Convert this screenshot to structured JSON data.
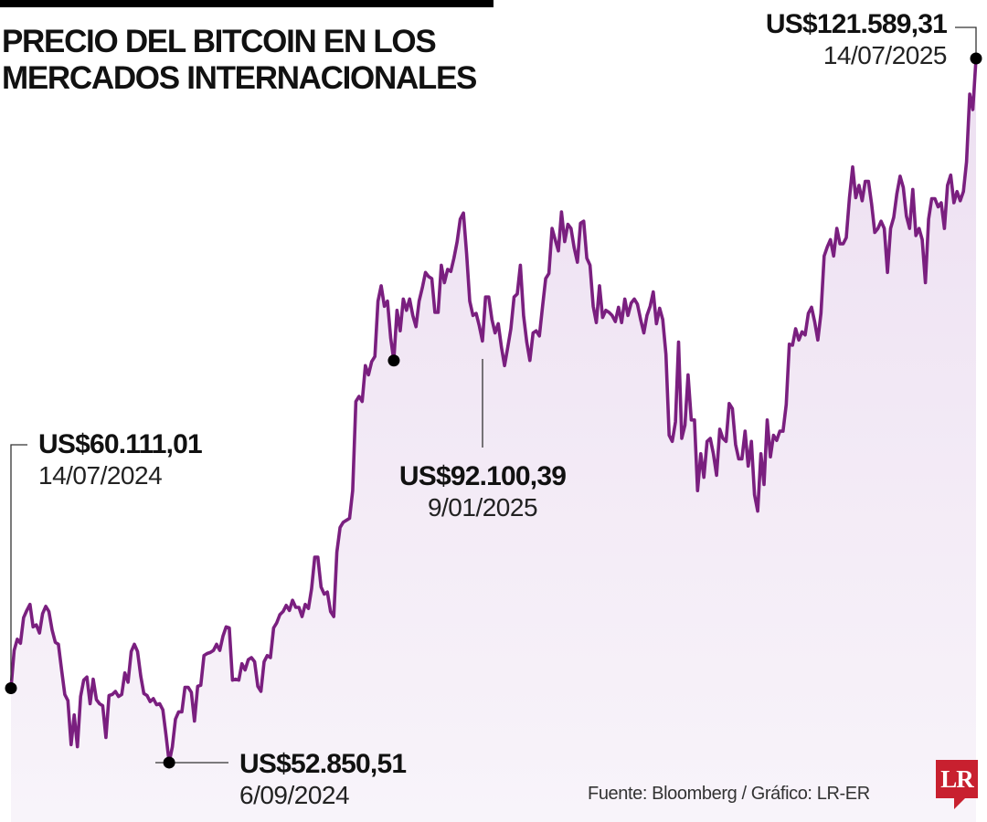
{
  "title": "PRECIO DEL BITCOIN EN LOS\nMERCADOS INTERNACIONALES",
  "source": "Fuente: Bloomberg / Gráfico: LR-ER",
  "logo_text": "LR",
  "colors": {
    "line": "#7a1f7f",
    "area": "#efe3f2",
    "bitcoin_icon": "#dcc3e0",
    "logo": "#c8202f"
  },
  "icons": {
    "background": "bitcoin-icon",
    "logo": "lr-logo"
  },
  "chart_data": {
    "type": "area",
    "title": "PRECIO DEL BITCOIN EN LOS MERCADOS INTERNACIONALES",
    "xlabel": "",
    "ylabel": "",
    "x_range": [
      "14/07/2024",
      "14/07/2025"
    ],
    "ylim": [
      47000,
      127300
    ],
    "grid": false,
    "legend": "none",
    "currency": "US$",
    "values": [
      60111,
      63800,
      64900,
      64500,
      67000,
      67700,
      68300,
      66100,
      66300,
      65500,
      67400,
      68100,
      67600,
      65800,
      64600,
      64400,
      61900,
      59500,
      58900,
      54600,
      57500,
      54400,
      59300,
      60900,
      61200,
      58600,
      61000,
      59000,
      58600,
      58400,
      55300,
      59400,
      59500,
      59800,
      59300,
      59500,
      61600,
      60700,
      63700,
      64400,
      63700,
      61300,
      59600,
      59400,
      58800,
      59100,
      58500,
      58600,
      58000,
      55500,
      52851,
      54400,
      57100,
      57800,
      57800,
      60200,
      60200,
      59700,
      56900,
      60300,
      60400,
      63300,
      63500,
      63600,
      63800,
      64400,
      63800,
      65200,
      66100,
      66000,
      60900,
      61000,
      60900,
      62500,
      61900,
      62900,
      63100,
      62700,
      60300,
      59800,
      62700,
      63300,
      63100,
      66000,
      66500,
      67300,
      67600,
      68200,
      67700,
      68700,
      68000,
      68000,
      67100,
      68300,
      67900,
      69800,
      72900,
      72900,
      70000,
      69300,
      69500,
      67600,
      67100,
      73400,
      75800,
      76300,
      76500,
      76700,
      79400,
      88100,
      88600,
      88100,
      91600,
      90700,
      92000,
      92500,
      97900,
      99400,
      97400,
      97900,
      94300,
      92100,
      97000,
      95000,
      98100,
      97000,
      98100,
      96500,
      95400,
      97900,
      99200,
      100700,
      100300,
      100100,
      96800,
      96800,
      101400,
      99700,
      101000,
      100800,
      102100,
      103700,
      105900,
      106500,
      102500,
      97900,
      96500,
      96700,
      95500,
      94000,
      98300,
      98300,
      96100,
      94800,
      95700,
      93400,
      91600,
      93400,
      95200,
      98300,
      98600,
      101400,
      96500,
      93900,
      92100,
      94800,
      95000,
      94500,
      97400,
      100100,
      100600,
      105000,
      103900,
      102800,
      106600,
      103700,
      105400,
      105000,
      103100,
      101700,
      105500,
      105700,
      102100,
      101400,
      97400,
      95800,
      99400,
      96300,
      97000,
      96800,
      96500,
      95900,
      97300,
      95800,
      98100,
      96500,
      97700,
      98100,
      97600,
      96100,
      94800,
      96500,
      97400,
      98800,
      95700,
      97200,
      96100,
      92700,
      84800,
      84200,
      86100,
      93900,
      84500,
      85800,
      90700,
      86300,
      86300,
      79400,
      83000,
      80700,
      84200,
      84500,
      83000,
      80900,
      85400,
      84500,
      84200,
      87900,
      87400,
      83900,
      82500,
      82500,
      85200,
      81800,
      84200,
      79000,
      77400,
      83000,
      80000,
      86300,
      82700,
      84800,
      84300,
      85200,
      85200,
      87800,
      93700,
      93600,
      95200,
      94100,
      94900,
      94600,
      96700,
      97300,
      95900,
      94100,
      96700,
      102300,
      103200,
      103900,
      102300,
      105000,
      103500,
      103500,
      104100,
      108000,
      111000,
      108000,
      109200,
      107700,
      109600,
      109600,
      107400,
      104600,
      105000,
      105700,
      105000,
      100700,
      105000,
      106100,
      108400,
      110100,
      109000,
      106200,
      105000,
      108800,
      104300,
      105000,
      103900,
      99700,
      105900,
      107900,
      107900,
      107100,
      107500,
      105000,
      109200,
      110200,
      107500,
      108600,
      107700,
      108600,
      111500,
      118100,
      116600,
      121589
    ],
    "annotations": [
      {
        "value": "US$60.111,01",
        "date": "14/07/2024",
        "kind": "start"
      },
      {
        "value": "US$52.850,51",
        "date": "6/09/2024",
        "kind": "minimum"
      },
      {
        "value": "US$92.100,39",
        "date": "9/01/2025",
        "kind": "marked"
      },
      {
        "value": "US$121.589,31",
        "date": "14/07/2025",
        "kind": "end"
      }
    ]
  }
}
